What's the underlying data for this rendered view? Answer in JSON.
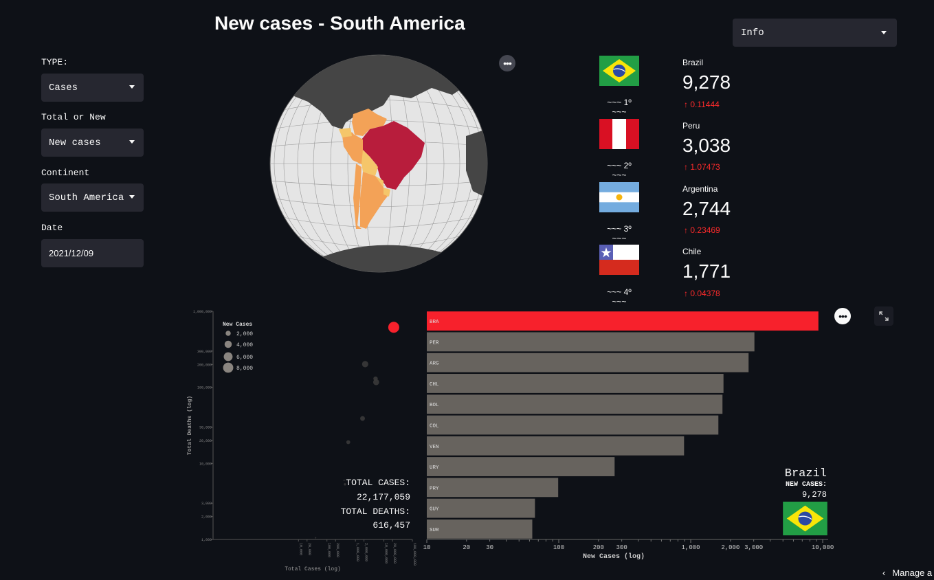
{
  "sidebar": {
    "type_label": "TYPE:",
    "type_value": "Cases",
    "total_new_label": "Total or New",
    "total_new_value": "New cases",
    "continent_label": "Continent",
    "continent_value": "South America",
    "date_label": "Date",
    "date_value": "2021/12/09"
  },
  "header": {
    "title": "New cases - South America",
    "info_select": "Info"
  },
  "ranking": [
    {
      "country": "Brazil",
      "value": "9,278",
      "delta": "0.11444",
      "rank": "~~~ 1º ~~~"
    },
    {
      "country": "Peru",
      "value": "3,038",
      "delta": "1.07473",
      "rank": "~~~ 2º ~~~"
    },
    {
      "country": "Argentina",
      "value": "2,744",
      "delta": "0.23469",
      "rank": "~~~ 3º ~~~"
    },
    {
      "country": "Chile",
      "value": "1,771",
      "delta": "0.04378",
      "rank": "~~~ 4º ~~~"
    }
  ],
  "colors": {
    "accent_red": "#ff2b2b",
    "bar_gray": "#67635e",
    "highlight_bar": "#f7212c",
    "background": "#0e1117",
    "control_bg": "#262730"
  },
  "scatter_summary": {
    "total_cases_label": "TOTAL CASES:",
    "total_cases_value": "22,177,059",
    "total_deaths_label": "TOTAL DEATHS:",
    "total_deaths_value": "616,457"
  },
  "bar_summary": {
    "country": "Brazil",
    "label": "NEW CASES:",
    "value": "9,278"
  },
  "chart_data": [
    {
      "type": "scatter",
      "xlabel": "Total Cases (log)",
      "ylabel": "Total Deaths (log)",
      "x_scale": "log",
      "y_scale": "log",
      "xlim": [
        10,
        100000000
      ],
      "ylim": [
        1000,
        1000000
      ],
      "x_ticks": [
        "10,000",
        "20,000",
        "100,000",
        "200,000",
        "1,000,000",
        "2,000,000",
        "10,000,000",
        "20,000,000",
        "100,000,000"
      ],
      "y_ticks": [
        "1,000",
        "2,000",
        "3,000",
        "10,000",
        "20,000",
        "30,000",
        "100,000",
        "200,000",
        "300,000",
        "1,000,000"
      ],
      "legend_title": "New Cases",
      "legend_entries": [
        "2,000",
        "4,000",
        "6,000",
        "8,000"
      ],
      "legend_values": [
        2000,
        4000,
        6000,
        8000
      ],
      "legend_position": "top-left",
      "points": [
        {
          "x": 22177059,
          "y": 616457,
          "size": 9278,
          "highlight": true
        },
        {
          "x": 2200000,
          "y": 202000,
          "size": 3038
        },
        {
          "x": 5350000,
          "y": 117000,
          "size": 2744
        },
        {
          "x": 5100000,
          "y": 130000,
          "size": 1500
        },
        {
          "x": 1780000,
          "y": 39000,
          "size": 1771
        },
        {
          "x": 560000,
          "y": 19000,
          "size": 1200
        },
        {
          "x": 430000,
          "y": 5300,
          "size": 400
        },
        {
          "x": 400000,
          "y": 6000,
          "size": 150
        },
        {
          "x": 40000,
          "y": 1050,
          "size": 100
        }
      ]
    },
    {
      "type": "bar",
      "orientation": "horizontal",
      "xlabel": "New Cases (log)",
      "x_scale": "log",
      "xlim": [
        10,
        11000
      ],
      "x_ticks": [
        "10",
        "20",
        "30",
        "100",
        "200",
        "300",
        "1,000",
        "2,000",
        "3,000",
        "10,000"
      ],
      "x_tick_values": [
        10,
        20,
        30,
        100,
        200,
        300,
        1000,
        2000,
        3000,
        10000
      ],
      "categories": [
        "BRA",
        "PER",
        "ARG",
        "CHL",
        "BOL",
        "COL",
        "VEN",
        "URY",
        "PRY",
        "GUY",
        "SUR"
      ],
      "values": [
        9278,
        3038,
        2744,
        1771,
        1740,
        1620,
        890,
        265,
        99,
        66,
        63
      ],
      "highlight": "BRA"
    }
  ]
}
